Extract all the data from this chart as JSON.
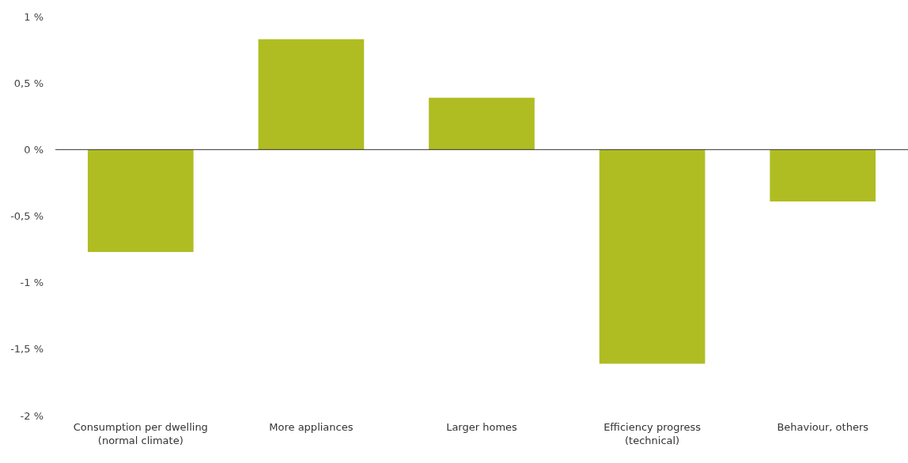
{
  "chart_data": {
    "type": "bar",
    "categories": [
      "Consumption per dwelling (normal climate)",
      "More appliances",
      "Larger homes",
      "Efficiency progress (technical)",
      "Behaviour, others"
    ],
    "values": [
      -0.77,
      0.83,
      0.39,
      -1.61,
      -0.39
    ],
    "color": "#afbd22",
    "ylim": [
      -2,
      1
    ],
    "yticks": [
      {
        "value": -2,
        "label": "-2 %"
      },
      {
        "value": -1.5,
        "label": "-1,5 %"
      },
      {
        "value": -1,
        "label": "-1 %"
      },
      {
        "value": -0.5,
        "label": "-0,5 %"
      },
      {
        "value": 0,
        "label": "0 %"
      },
      {
        "value": 0.5,
        "label": "0,5 %"
      },
      {
        "value": 1,
        "label": "1 %"
      }
    ],
    "ylabel": null
  }
}
